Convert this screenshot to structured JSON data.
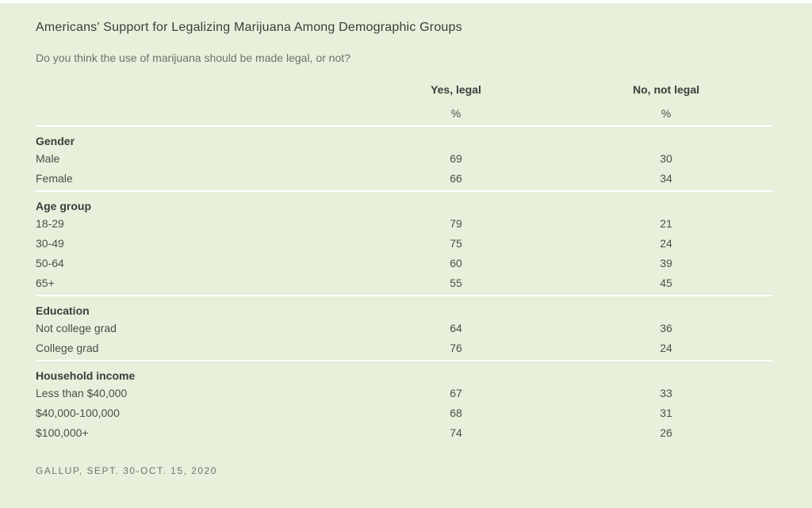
{
  "header": {
    "title": "Americans' Support for Legalizing Marijuana Among Demographic Groups",
    "question": "Do you think the use of marijuana should be made legal, or not?"
  },
  "table": {
    "col_yes": "Yes, legal",
    "col_no": "No, not legal",
    "unit": "%",
    "sections": [
      {
        "name": "Gender",
        "rows": [
          {
            "label": "Male",
            "yes": "69",
            "no": "30"
          },
          {
            "label": "Female",
            "yes": "66",
            "no": "34"
          }
        ]
      },
      {
        "name": "Age group",
        "rows": [
          {
            "label": "18-29",
            "yes": "79",
            "no": "21"
          },
          {
            "label": "30-49",
            "yes": "75",
            "no": "24"
          },
          {
            "label": "50-64",
            "yes": "60",
            "no": "39"
          },
          {
            "label": "65+",
            "yes": "55",
            "no": "45"
          }
        ]
      },
      {
        "name": "Education",
        "rows": [
          {
            "label": "Not college grad",
            "yes": "64",
            "no": "36"
          },
          {
            "label": "College grad",
            "yes": "76",
            "no": "24"
          }
        ]
      },
      {
        "name": "Household income",
        "rows": [
          {
            "label": "Less than $40,000",
            "yes": "67",
            "no": "33"
          },
          {
            "label": "$40,000-100,000",
            "yes": "68",
            "no": "31"
          },
          {
            "label": "$100,000+",
            "yes": "74",
            "no": "26"
          }
        ]
      }
    ]
  },
  "footer": {
    "source": "GALLUP, SEPT. 30-OCT. 15, 2020"
  },
  "colors": {
    "background": "#e8efda",
    "separator": "#ffffff",
    "heading_text": "#3c3e3b",
    "body_text": "#4c4e49",
    "source_text": "#70756e"
  },
  "chart_data": {
    "type": "table",
    "title": "Americans' Support for Legalizing Marijuana Among Demographic Groups",
    "subtitle": "Do you think the use of marijuana should be made legal, or not?",
    "columns": [
      "Yes, legal %",
      "No, not legal %"
    ],
    "groups": [
      {
        "name": "Gender",
        "rows": [
          {
            "label": "Male",
            "yes_legal": 69,
            "no_not_legal": 30
          },
          {
            "label": "Female",
            "yes_legal": 66,
            "no_not_legal": 34
          }
        ]
      },
      {
        "name": "Age group",
        "rows": [
          {
            "label": "18-29",
            "yes_legal": 79,
            "no_not_legal": 21
          },
          {
            "label": "30-49",
            "yes_legal": 75,
            "no_not_legal": 24
          },
          {
            "label": "50-64",
            "yes_legal": 60,
            "no_not_legal": 39
          },
          {
            "label": "65+",
            "yes_legal": 55,
            "no_not_legal": 45
          }
        ]
      },
      {
        "name": "Education",
        "rows": [
          {
            "label": "Not college grad",
            "yes_legal": 64,
            "no_not_legal": 36
          },
          {
            "label": "College grad",
            "yes_legal": 76,
            "no_not_legal": 24
          }
        ]
      },
      {
        "name": "Household income",
        "rows": [
          {
            "label": "Less than $40,000",
            "yes_legal": 67,
            "no_not_legal": 33
          },
          {
            "label": "$40,000-100,000",
            "yes_legal": 68,
            "no_not_legal": 31
          },
          {
            "label": "$100,000+",
            "yes_legal": 74,
            "no_not_legal": 26
          }
        ]
      }
    ],
    "source": "GALLUP, SEPT. 30-OCT. 15, 2020"
  }
}
